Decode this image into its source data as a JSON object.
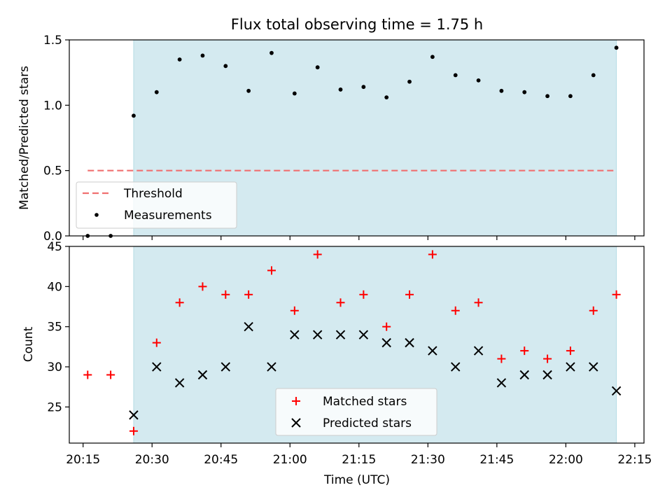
{
  "chart_data": [
    {
      "type": "scatter",
      "title": "Flux total observing time = 1.75 h",
      "xlabel": "",
      "ylabel": "Matched/Predicted stars",
      "ylim": [
        0,
        1.5
      ],
      "yticks": [
        "0.0",
        "0.5",
        "1.0",
        "1.5"
      ],
      "xlim": [
        "20:12",
        "22:17"
      ],
      "shaded_region": {
        "start": "20:26",
        "end": "22:11",
        "color": "#d4eaf0"
      },
      "threshold": {
        "name": "Threshold",
        "value": 0.5,
        "x_start": "20:16",
        "x_end": "22:11",
        "color": "#f07070"
      },
      "legend": {
        "position": "lower left",
        "entries": [
          "Threshold",
          "Measurements"
        ]
      },
      "series": [
        {
          "name": "Measurements",
          "marker": "dot",
          "color": "#000000",
          "x": [
            "20:16",
            "20:21",
            "20:26",
            "20:31",
            "20:36",
            "20:41",
            "20:46",
            "20:51",
            "20:56",
            "21:01",
            "21:06",
            "21:11",
            "21:16",
            "21:21",
            "21:26",
            "21:31",
            "21:36",
            "21:41",
            "21:46",
            "21:51",
            "21:56",
            "22:01",
            "22:06",
            "22:11"
          ],
          "values": [
            0.0,
            0.0,
            0.92,
            1.1,
            1.35,
            1.38,
            1.3,
            1.11,
            1.4,
            1.09,
            1.29,
            1.12,
            1.14,
            1.06,
            1.18,
            1.37,
            1.23,
            1.19,
            1.11,
            1.1,
            1.07,
            1.07,
            1.23,
            1.44
          ]
        }
      ]
    },
    {
      "type": "scatter",
      "title": "",
      "xlabel": "Time (UTC)",
      "ylabel": "Count",
      "ylim": [
        20.5,
        45
      ],
      "yticks": [
        "25",
        "30",
        "35",
        "40",
        "45"
      ],
      "xlim": [
        "20:12",
        "22:17"
      ],
      "xticks": [
        "20:15",
        "20:30",
        "20:45",
        "21:00",
        "21:15",
        "21:30",
        "21:45",
        "22:00",
        "22:15"
      ],
      "shaded_region": {
        "start": "20:26",
        "end": "22:11",
        "color": "#d4eaf0"
      },
      "legend": {
        "position": "lower center",
        "entries": [
          "Matched stars",
          "Predicted stars"
        ]
      },
      "series": [
        {
          "name": "Matched stars",
          "marker": "plus",
          "color": "#ff0000",
          "x": [
            "20:16",
            "20:21",
            "20:26",
            "20:31",
            "20:36",
            "20:41",
            "20:46",
            "20:51",
            "20:56",
            "21:01",
            "21:06",
            "21:11",
            "21:16",
            "21:21",
            "21:26",
            "21:31",
            "21:36",
            "21:41",
            "21:46",
            "21:51",
            "21:56",
            "22:01",
            "22:06",
            "22:11"
          ],
          "values": [
            29,
            29,
            22,
            33,
            38,
            40,
            39,
            39,
            42,
            37,
            44,
            38,
            39,
            35,
            39,
            44,
            37,
            38,
            31,
            32,
            31,
            32,
            37,
            39
          ]
        },
        {
          "name": "Predicted stars",
          "marker": "x",
          "color": "#000000",
          "x": [
            "20:26",
            "20:31",
            "20:36",
            "20:41",
            "20:46",
            "20:51",
            "20:56",
            "21:01",
            "21:06",
            "21:11",
            "21:16",
            "21:21",
            "21:26",
            "21:31",
            "21:36",
            "21:41",
            "21:46",
            "21:51",
            "21:56",
            "22:01",
            "22:06",
            "22:11"
          ],
          "values": [
            24,
            30,
            28,
            29,
            30,
            35,
            30,
            34,
            34,
            34,
            34,
            33,
            33,
            32,
            30,
            32,
            28,
            29,
            29,
            30,
            30,
            27
          ]
        }
      ]
    }
  ]
}
